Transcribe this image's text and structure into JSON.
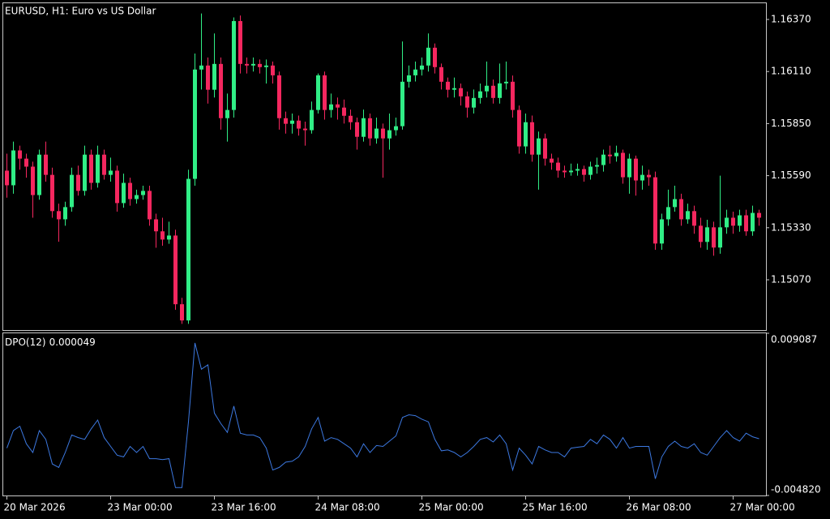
{
  "chart_data": [
    {
      "type": "candlestick",
      "title": "EURUSD, H1:  Euro vs US Dollar",
      "categories": [
        "20 Mar 2026",
        null,
        null,
        null,
        null,
        null,
        null,
        null,
        null,
        null,
        null,
        null,
        null,
        null,
        null,
        null,
        "23 Mar 00:00",
        null,
        null,
        null,
        null,
        null,
        null,
        null,
        null,
        null,
        null,
        null,
        null,
        null,
        null,
        null,
        "23 Mar 16:00",
        null,
        null,
        null,
        null,
        null,
        null,
        null,
        null,
        null,
        null,
        null,
        null,
        null,
        null,
        null,
        "24 Mar 08:00",
        null,
        null,
        null,
        null,
        null,
        null,
        null,
        null,
        null,
        null,
        null,
        null,
        null,
        null,
        null,
        "25 Mar 00:00",
        null,
        null,
        null,
        null,
        null,
        null,
        null,
        null,
        null,
        null,
        null,
        null,
        null,
        null,
        null,
        "25 Mar 16:00",
        null,
        null,
        null,
        null,
        null,
        null,
        null,
        null,
        null,
        null,
        null,
        null,
        null,
        null,
        null,
        "26 Mar 08:00",
        null,
        null,
        null,
        null,
        null,
        null,
        null,
        null,
        null,
        null,
        null,
        null,
        null,
        null,
        null,
        "27 Mar 00:00",
        null,
        null,
        null,
        null
      ],
      "open": [
        1.15615,
        1.15542,
        1.15716,
        1.15675,
        1.15635,
        1.15493,
        1.15695,
        1.15594,
        1.15413,
        1.15372,
        1.15433,
        1.15594,
        1.15514,
        1.15695,
        1.15554,
        1.15695,
        1.15594,
        1.15615,
        1.15453,
        1.15554,
        1.15473,
        1.15493,
        1.15514,
        1.15372,
        1.15312,
        1.15271,
        1.15291,
        1.14948,
        1.14867,
        1.15574,
        1.1612,
        1.1614,
        1.16019,
        1.16148,
        1.15877,
        1.15918,
        1.16362,
        1.16148,
        1.1614,
        1.16148,
        1.16132,
        1.1614,
        1.16091,
        1.15877,
        1.15849,
        1.15865,
        1.15825,
        1.15817,
        1.15918,
        1.16091,
        1.15918,
        1.15946,
        1.1593,
        1.15889,
        1.15857,
        1.15784,
        1.15877,
        1.15776,
        1.15825,
        1.15776,
        1.15817,
        1.15837,
        1.16059,
        1.16091,
        1.1612,
        1.1614,
        1.16229,
        1.16132,
        1.16059,
        1.16019,
        1.16027,
        1.15986,
        1.1593,
        1.15978,
        1.16011,
        1.16039,
        1.15978,
        1.16051,
        1.16059,
        1.15918,
        1.15736,
        1.15857,
        1.15695,
        1.15776,
        1.15675,
        1.15655,
        1.15615,
        1.15607,
        1.15615,
        1.15623,
        1.15594,
        1.15635,
        1.15643,
        1.15695,
        1.15687,
        1.15704,
        1.15582,
        1.15675,
        1.15566,
        1.15594,
        1.15582,
        1.15251,
        1.15372,
        1.15433,
        1.15473,
        1.15372,
        1.15413,
        1.1534,
        1.15259,
        1.15332,
        1.15231,
        1.15332,
        1.1538,
        1.1534,
        1.15392,
        1.15312,
        1.15404
      ],
      "high": [
        1.157,
        1.1576,
        1.1574,
        1.157,
        1.1566,
        1.1572,
        1.1576,
        1.1563,
        1.1545,
        1.1546,
        1.1563,
        1.1564,
        1.1574,
        1.1572,
        1.1574,
        1.1572,
        1.1568,
        1.1564,
        1.156,
        1.1558,
        1.1552,
        1.1554,
        1.1554,
        1.154,
        1.1538,
        1.1536,
        1.1532,
        1.1498,
        1.1562,
        1.162,
        1.164,
        1.1618,
        1.163,
        1.1618,
        1.16,
        1.1638,
        1.1639,
        1.1618,
        1.1618,
        1.1617,
        1.1617,
        1.1616,
        1.1611,
        1.1591,
        1.159,
        1.1589,
        1.1586,
        1.1596,
        1.161,
        1.1611,
        1.16,
        1.1598,
        1.1597,
        1.1592,
        1.1588,
        1.1592,
        1.159,
        1.1588,
        1.1585,
        1.159,
        1.1588,
        1.1626,
        1.1614,
        1.1616,
        1.1618,
        1.163,
        1.1625,
        1.1615,
        1.1608,
        1.1608,
        1.1605,
        1.1601,
        1.1602,
        1.1605,
        1.1616,
        1.1607,
        1.1615,
        1.1616,
        1.1609,
        1.1594,
        1.159,
        1.1589,
        1.1581,
        1.158,
        1.157,
        1.1568,
        1.1564,
        1.1565,
        1.1565,
        1.1564,
        1.1566,
        1.1568,
        1.1572,
        1.1574,
        1.1574,
        1.1572,
        1.157,
        1.1569,
        1.1564,
        1.1562,
        1.1561,
        1.154,
        1.1552,
        1.1554,
        1.155,
        1.1545,
        1.1544,
        1.1538,
        1.1537,
        1.1536,
        1.1559,
        1.1542,
        1.1541,
        1.1542,
        1.1542,
        1.1544,
        1.1542
      ],
      "low": [
        1.1548,
        1.155,
        1.1562,
        1.1558,
        1.1538,
        1.1547,
        1.1556,
        1.1538,
        1.1526,
        1.1534,
        1.1541,
        1.1549,
        1.1549,
        1.1552,
        1.1553,
        1.1557,
        1.1556,
        1.1541,
        1.1543,
        1.1544,
        1.1545,
        1.1547,
        1.1534,
        1.1523,
        1.1524,
        1.1525,
        1.1492,
        1.1485,
        1.1485,
        1.1554,
        1.1602,
        1.1595,
        1.1598,
        1.1582,
        1.1576,
        1.1588,
        1.161,
        1.161,
        1.1611,
        1.161,
        1.1605,
        1.1605,
        1.1582,
        1.158,
        1.158,
        1.1579,
        1.1574,
        1.158,
        1.159,
        1.1587,
        1.1588,
        1.1587,
        1.1585,
        1.1582,
        1.1572,
        1.1576,
        1.1574,
        1.1575,
        1.1558,
        1.1572,
        1.1579,
        1.1582,
        1.1603,
        1.1606,
        1.1609,
        1.1611,
        1.161,
        1.1602,
        1.1598,
        1.1598,
        1.1594,
        1.1588,
        1.159,
        1.1595,
        1.1598,
        1.1595,
        1.1595,
        1.1602,
        1.1588,
        1.157,
        1.157,
        1.1566,
        1.1552,
        1.1564,
        1.1562,
        1.1558,
        1.1558,
        1.1559,
        1.1559,
        1.1556,
        1.1557,
        1.156,
        1.1561,
        1.1565,
        1.1566,
        1.1555,
        1.155,
        1.1549,
        1.1552,
        1.1554,
        1.1522,
        1.1522,
        1.1534,
        1.1541,
        1.1534,
        1.1535,
        1.153,
        1.1523,
        1.1522,
        1.1519,
        1.152,
        1.153,
        1.153,
        1.1531,
        1.1529,
        1.1529,
        1.1534
      ],
      "close": [
        1.15542,
        1.15716,
        1.15675,
        1.15635,
        1.15493,
        1.15695,
        1.15594,
        1.15413,
        1.15372,
        1.15433,
        1.15594,
        1.15514,
        1.15695,
        1.15554,
        1.15695,
        1.15594,
        1.15615,
        1.15453,
        1.15554,
        1.15473,
        1.15493,
        1.15514,
        1.15372,
        1.15312,
        1.15271,
        1.15291,
        1.14948,
        1.14867,
        1.15574,
        1.1612,
        1.1614,
        1.16019,
        1.16148,
        1.15877,
        1.15918,
        1.16362,
        1.16148,
        1.1614,
        1.16148,
        1.16132,
        1.1614,
        1.16091,
        1.15877,
        1.15849,
        1.15865,
        1.15825,
        1.15817,
        1.15918,
        1.16091,
        1.15918,
        1.15946,
        1.1593,
        1.15889,
        1.15857,
        1.15784,
        1.15877,
        1.15776,
        1.15825,
        1.15776,
        1.15817,
        1.15837,
        1.16059,
        1.16091,
        1.1612,
        1.1614,
        1.16229,
        1.16132,
        1.16059,
        1.16019,
        1.16027,
        1.15986,
        1.1593,
        1.15978,
        1.16011,
        1.16039,
        1.15978,
        1.16051,
        1.16059,
        1.15918,
        1.15736,
        1.15857,
        1.15695,
        1.15776,
        1.15675,
        1.15655,
        1.15615,
        1.15607,
        1.15615,
        1.15623,
        1.15594,
        1.15635,
        1.15643,
        1.15695,
        1.15687,
        1.15704,
        1.15582,
        1.15675,
        1.15566,
        1.15594,
        1.15582,
        1.15251,
        1.15372,
        1.15433,
        1.15473,
        1.15372,
        1.15413,
        1.1534,
        1.15259,
        1.15332,
        1.15231,
        1.15332,
        1.1538,
        1.1534,
        1.15392,
        1.15312,
        1.15404,
        1.1538
      ],
      "up_color": "#30ee86",
      "down_color": "#f5275f",
      "ylim": [
        1.14819,
        1.16451
      ],
      "yticks": [
        {
          "value": 1.1637,
          "label": "1.16370"
        },
        {
          "value": 1.1611,
          "label": "1.16110"
        },
        {
          "value": 1.1585,
          "label": "1.15850"
        },
        {
          "value": 1.1559,
          "label": "1.15590"
        },
        {
          "value": 1.1533,
          "label": "1.15330"
        },
        {
          "value": 1.1507,
          "label": "1.15070"
        }
      ]
    },
    {
      "type": "line",
      "series": [
        {
          "name": "DPO(12)",
          "color": "#3c78e0",
          "values": [
            -0.00076,
            0.000743,
            0.001119,
            -0.000384,
            -0.001136,
            0.000743,
            -9e-06,
            -0.002113,
            -0.002414,
            -0.001136,
            0.000367,
            0.000142,
            -9e-06,
            0.000893,
            0.001645,
            0.000142,
            -0.00061,
            -0.001362,
            -0.001512,
            -0.00061,
            -0.001136,
            -0.00061,
            -0.001662,
            -0.001662,
            -0.001737,
            -0.001662,
            -0.004143,
            -0.004143,
            0.001495,
            0.00826,
            0.006005,
            0.006381,
            0.002247,
            0.001344,
            0.000593,
            0.002848,
            0.000518,
            0.000367,
            0.000367,
            0.000142,
            -0.00076,
            -0.00264,
            -0.002414,
            -0.001963,
            -0.001888,
            -0.001512,
            -0.00061,
            0.000893,
            0.001871,
            -0.000159,
            0.000142,
            -9e-06,
            -0.000384,
            -0.00076,
            -0.001512,
            -0.000384,
            -0.001136,
            -0.000535,
            -0.00061,
            -0.000159,
            0.000292,
            0.001871,
            0.002096,
            0.002021,
            0.00172,
            0.001495,
            -9e-06,
            -0.000986,
            -0.000911,
            -0.001136,
            -0.001512,
            -0.001136,
            -0.00061,
            -9e-06,
            0.000142,
            -0.000234,
            0.000367,
            -0.000384,
            -0.00264,
            -0.00076,
            -0.001362,
            -0.002113,
            -0.00061,
            -0.000911,
            -0.001136,
            -0.001136,
            -0.001512,
            -0.00076,
            -0.000685,
            -0.00061,
            -9e-06,
            -0.000384,
            0.000367,
            -9e-06,
            -0.00076,
            0.000142,
            -0.00076,
            -0.00061,
            -0.00061,
            -0.00061,
            -0.003391,
            -0.001512,
            -0.00061,
            -0.000159,
            -0.00061,
            -0.00076,
            -0.000384,
            -0.001136,
            -0.001362,
            -0.00061,
            0.000142,
            0.000743,
            0.000142,
            -0.000159,
            0.000518,
            0.000217,
            4.9e-05
          ]
        }
      ],
      "ylim": [
        -0.00482,
        0.009087
      ],
      "yticks": [
        {
          "value": -0.00482,
          "label": "-0.004820"
        },
        0.009087
      ]
    }
  ]
}
